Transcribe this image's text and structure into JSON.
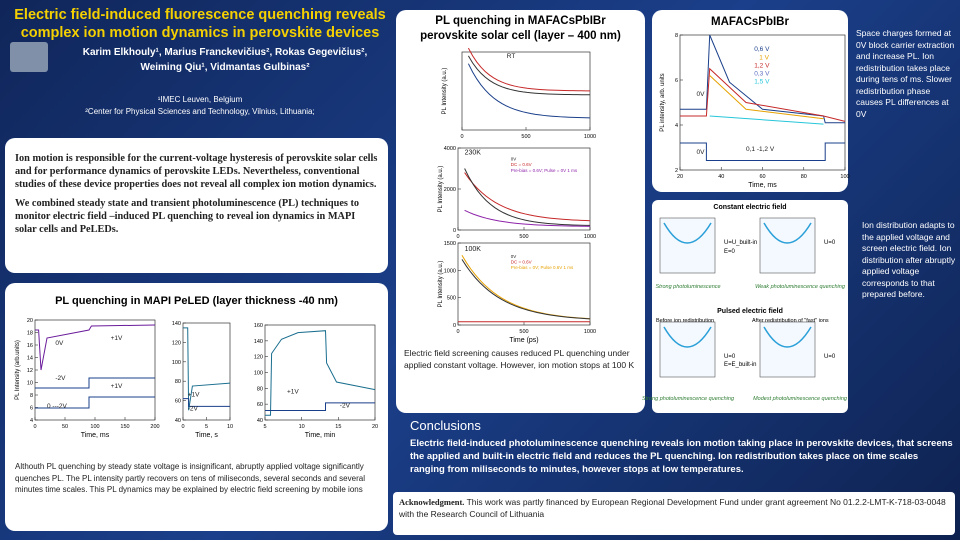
{
  "header": {
    "title": [
      "Electric field-induced fluorescence quenching reveals",
      "complex ion motion dynamics in perovskite devices"
    ],
    "authors": [
      "Karim Elkhouly¹,  Marius Franckevičius²,  Rokas Gegevičius²,",
      "Weiming Qiu¹,  Vidmantas Gulbinas²"
    ],
    "affiliations": [
      "¹IMEC Leuven, Belgium",
      "²Center for Physical Sciences and Technology, Vilnius, Lithuania;"
    ]
  },
  "intro": [
    "Ion motion is responsible for the current-voltage hysteresis of perovskite solar cells and for performance dynamics of perovskite LEDs. Nevertheless, conventional studies of these device properties does not reveal all complex ion motion dynamics.",
    "We combined steady state and transient photoluminescence (PL) techniques to monitor electric field –induced PL quenching to reveal ion dynamics in MAPI solar cells and PeLEDs."
  ],
  "peled": {
    "title": "PL quenching in MAPI PeLED (layer thickness -40 nm)",
    "plots": [
      {
        "ylabel": "PL Intensity (arb.units)",
        "xlabel": "Time, ms",
        "xticks": [
          "0",
          "50",
          "100",
          "150",
          "200"
        ],
        "yticks": [
          "4",
          "6",
          "8",
          "10",
          "12",
          "14",
          "16",
          "18",
          "20"
        ],
        "notes": [
          "0V",
          "-2V",
          "+1V",
          "+1V",
          "0 ---2V"
        ]
      },
      {
        "ylabel": "",
        "xlabel": "Time, s",
        "xticks": [
          "0",
          "5",
          "10"
        ],
        "yticks": [
          "40",
          "60",
          "80",
          "100",
          "120",
          "140"
        ],
        "notes": [
          "+1V",
          "-2V"
        ]
      },
      {
        "ylabel": "",
        "xlabel": "Time, min",
        "xticks": [
          "5",
          "10",
          "15",
          "20"
        ],
        "yticks": [
          "40",
          "60",
          "80",
          "100",
          "120",
          "140",
          "160"
        ],
        "notes": [
          "+1V",
          "-2V"
        ]
      }
    ],
    "caption": "Althouth PL quenching by steady state voltage is insignificant, abruptly applied voltage significantly quenches PL. The PL intensity partly recovers on tens of miliseconds, several seconds and several minutes time scales. This PL dynamics may be explained by electric field screening by mobile ions"
  },
  "center": {
    "title": [
      "PL quenching in MAFACsPbIBr",
      "perovskite solar cell (layer – 400 nm)"
    ],
    "plots": [
      {
        "ylabel": "PL Intensity (a.u.)",
        "xlabel": "",
        "xticks": [
          "0",
          "500",
          "1000"
        ],
        "yticks": [],
        "notes": [
          "RT"
        ]
      },
      {
        "ylabel": "PL Intensity (a.u.)",
        "xlabel": "",
        "xticks": [
          "0",
          "500",
          "1000"
        ],
        "yticks": [
          "0",
          "2000",
          "4000"
        ],
        "notes": [
          "230K",
          "0V",
          "DC = 0.6V",
          "Pre-bias = 0.6V; Pulse = 0V 1 ms"
        ]
      },
      {
        "ylabel": "PL Intensity (a.u.)",
        "xlabel": "Time (ps)",
        "xticks": [
          "0",
          "500",
          "1000"
        ],
        "yticks": [
          "0",
          "500",
          "1000",
          "1500"
        ],
        "notes": [
          "100K",
          "0V",
          "DC = 0.6V",
          "Pre-bias = 0V; Pulse 0.6V 1 ms"
        ]
      }
    ],
    "caption": "Electric field screening causes reduced PL quenching under applied constant voltage. However,  ion motion stops at 100 K"
  },
  "right": {
    "title": "MAFACsPbIBr",
    "plot": {
      "ylabel": "PL intensity, arb. units",
      "xlabel": "Time, ms",
      "xticks": [
        "20",
        "40",
        "60",
        "80",
        "100"
      ],
      "yticks": [
        "2",
        "4",
        "6",
        "8"
      ],
      "notes": [
        "0V",
        "0,6 V",
        "1 V",
        "1,2 V",
        "0,3 V",
        "1,5 V",
        "0V",
        "0,1 -1,2 V"
      ]
    },
    "text": "Space charges formed at 0V block carrier extraction and increase PL. Ion redistribution takes place during tens of ms. Slower redistribution phase causes PL differences at 0V"
  },
  "diagram": {
    "labels": [
      "Constant electric field",
      "U=U_built-in",
      "E=0",
      "U=0",
      "Strong photoluminescence",
      "Weak photoluminescence quenching",
      "Pulsed electric field",
      "Before ion redistribution",
      "After redistribution of \"fast\" ions",
      "U=0",
      "E=E_built-in",
      "U=0",
      "Strong photoluminescence quenching",
      "Modest photoluminescence quenching"
    ],
    "text": "Ion distribution adapts to the applied voltage and screen electric field. Ion distribution after abruptly applied voltage corresponds to that prepared before."
  },
  "conclusions": {
    "title": "Conclusions",
    "text": "Electric field-induced photoluminescence quenching reveals ion motion taking place in perovskite devices, that screens the applied and built-in electric field and reduces the PL quenching. Ion redistribution takes place on time scales ranging from miliseconds to minutes, however stops at low temperatures."
  },
  "ack": {
    "label": "Acknowledgment.",
    "text": " This work was partly financed by European Regional Development Fund under grant agreement No 01.2.2-LMT-K-718-03-0048 with the Research Council of Lithuania"
  }
}
